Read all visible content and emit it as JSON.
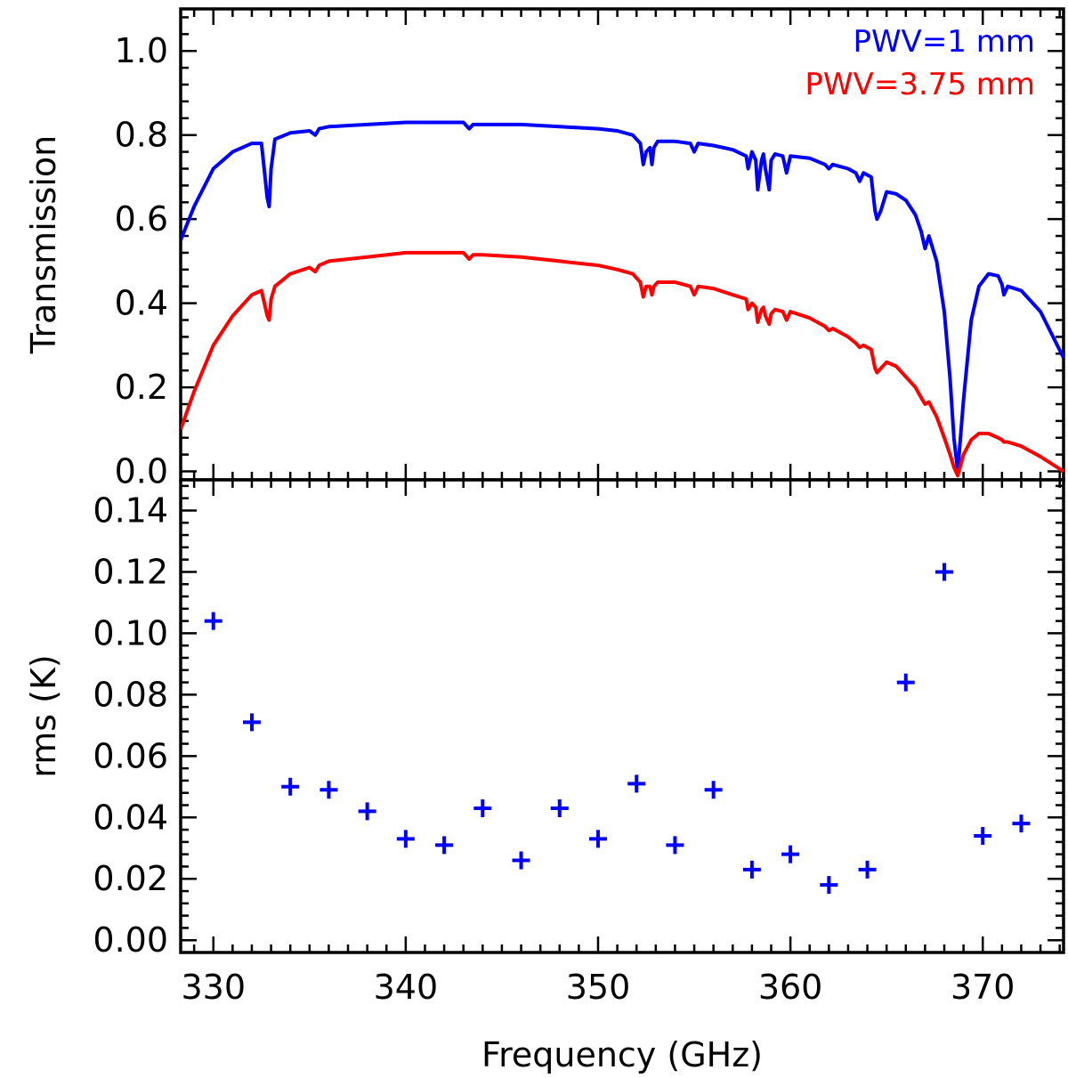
{
  "chart_data": [
    {
      "type": "line",
      "panel": "top",
      "xlabel": "",
      "ylabel": "Transmission",
      "xlim": [
        328.3,
        374.2
      ],
      "ylim": [
        -0.02,
        1.1
      ],
      "yticks": [
        0.0,
        0.2,
        0.4,
        0.6,
        0.8,
        1.0
      ],
      "ytick_labels": [
        "0.0",
        "0.2",
        "0.4",
        "0.6",
        "0.8",
        "1.0"
      ],
      "legend_position": "top-right",
      "series": [
        {
          "name": "PWV=1 mm",
          "color": "#0000ff",
          "x": [
            328.3,
            329,
            330,
            331,
            332,
            332.5,
            332.8,
            332.9,
            333.0,
            333.2,
            334,
            335,
            335.3,
            335.5,
            336,
            338,
            340,
            342,
            343,
            343.3,
            343.5,
            344,
            346,
            348,
            350,
            351,
            351.8,
            352.2,
            352.35,
            352.5,
            352.7,
            352.8,
            352.9,
            353.1,
            354,
            354.8,
            355.0,
            355.2,
            356,
            357,
            357.7,
            357.8,
            358,
            358.2,
            358.3,
            358.5,
            358.6,
            358.7,
            358.9,
            359.0,
            359.2,
            359.6,
            359.8,
            360,
            361,
            361.8,
            362.0,
            362.2,
            363,
            363.4,
            363.6,
            363.8,
            364.2,
            364.4,
            364.5,
            364.7,
            365,
            365.5,
            366,
            366.5,
            366.8,
            367.0,
            367.2,
            367.6,
            368,
            368.3,
            368.5,
            368.7,
            369.0,
            369.4,
            369.8,
            370.3,
            370.8,
            371.0,
            371.1,
            371.3,
            372,
            373,
            374.2
          ],
          "y": [
            0.55,
            0.63,
            0.72,
            0.76,
            0.78,
            0.78,
            0.65,
            0.63,
            0.72,
            0.79,
            0.805,
            0.81,
            0.8,
            0.815,
            0.82,
            0.825,
            0.83,
            0.83,
            0.83,
            0.815,
            0.825,
            0.825,
            0.825,
            0.82,
            0.815,
            0.81,
            0.8,
            0.78,
            0.73,
            0.76,
            0.77,
            0.73,
            0.77,
            0.785,
            0.785,
            0.78,
            0.76,
            0.78,
            0.775,
            0.765,
            0.75,
            0.72,
            0.76,
            0.74,
            0.67,
            0.74,
            0.755,
            0.72,
            0.67,
            0.74,
            0.755,
            0.75,
            0.71,
            0.75,
            0.745,
            0.73,
            0.72,
            0.73,
            0.72,
            0.71,
            0.69,
            0.71,
            0.7,
            0.62,
            0.6,
            0.62,
            0.665,
            0.66,
            0.645,
            0.61,
            0.57,
            0.53,
            0.56,
            0.5,
            0.38,
            0.22,
            0.08,
            0.0,
            0.17,
            0.36,
            0.44,
            0.47,
            0.465,
            0.445,
            0.42,
            0.44,
            0.43,
            0.38,
            0.27
          ]
        },
        {
          "name": "PWV=3.75 mm",
          "color": "#ff0000",
          "x": [
            328.3,
            329,
            330,
            331,
            332,
            332.5,
            332.8,
            332.9,
            333.0,
            333.2,
            334,
            335,
            335.3,
            335.5,
            336,
            338,
            340,
            342,
            343,
            343.3,
            343.5,
            344,
            346,
            348,
            350,
            351,
            351.8,
            352.2,
            352.35,
            352.5,
            352.7,
            352.8,
            352.9,
            353.1,
            354,
            354.8,
            355.0,
            355.2,
            356,
            357,
            357.7,
            357.8,
            358,
            358.2,
            358.3,
            358.5,
            358.6,
            358.7,
            358.9,
            359.0,
            359.2,
            359.6,
            359.8,
            360,
            361,
            361.8,
            362.0,
            362.2,
            363,
            363.4,
            363.6,
            363.8,
            364.2,
            364.4,
            364.5,
            364.7,
            365,
            365.5,
            366,
            366.5,
            366.8,
            367.0,
            367.2,
            367.6,
            368,
            368.3,
            368.5,
            368.7,
            369.0,
            369.4,
            369.8,
            370.3,
            370.8,
            371.0,
            371.1,
            371.3,
            372,
            373,
            374.2
          ],
          "y": [
            0.1,
            0.19,
            0.3,
            0.37,
            0.42,
            0.43,
            0.37,
            0.36,
            0.41,
            0.44,
            0.47,
            0.485,
            0.475,
            0.49,
            0.5,
            0.51,
            0.52,
            0.52,
            0.52,
            0.505,
            0.515,
            0.515,
            0.51,
            0.5,
            0.49,
            0.48,
            0.47,
            0.45,
            0.415,
            0.44,
            0.44,
            0.42,
            0.44,
            0.45,
            0.45,
            0.44,
            0.42,
            0.44,
            0.435,
            0.42,
            0.41,
            0.385,
            0.4,
            0.39,
            0.355,
            0.385,
            0.39,
            0.37,
            0.35,
            0.375,
            0.385,
            0.38,
            0.36,
            0.38,
            0.365,
            0.345,
            0.335,
            0.34,
            0.32,
            0.305,
            0.295,
            0.3,
            0.29,
            0.245,
            0.235,
            0.245,
            0.26,
            0.25,
            0.225,
            0.2,
            0.175,
            0.16,
            0.165,
            0.13,
            0.08,
            0.04,
            0.01,
            -0.01,
            0.04,
            0.075,
            0.09,
            0.09,
            0.08,
            0.075,
            0.07,
            0.07,
            0.06,
            0.035,
            0.0
          ]
        }
      ]
    },
    {
      "type": "scatter",
      "panel": "bottom",
      "xlabel": "Frequency (GHz)",
      "ylabel": "rms (K)",
      "xlim": [
        328.3,
        374.2
      ],
      "ylim": [
        -0.004,
        0.15
      ],
      "xticks": [
        330,
        340,
        350,
        360,
        370
      ],
      "xtick_labels": [
        "330",
        "340",
        "350",
        "360",
        "370"
      ],
      "yticks": [
        0.0,
        0.02,
        0.04,
        0.06,
        0.08,
        0.1,
        0.12,
        0.14
      ],
      "ytick_labels": [
        "0.00",
        "0.02",
        "0.04",
        "0.06",
        "0.08",
        "0.10",
        "0.12",
        "0.14"
      ],
      "marker": "plus",
      "color": "#0000ff",
      "x": [
        330,
        332,
        334,
        336,
        338,
        340,
        342,
        344,
        346,
        348,
        350,
        352,
        354,
        356,
        358,
        360,
        362,
        364,
        366,
        368,
        370,
        372
      ],
      "y": [
        0.104,
        0.071,
        0.05,
        0.049,
        0.042,
        0.033,
        0.031,
        0.043,
        0.026,
        0.043,
        0.033,
        0.051,
        0.031,
        0.049,
        0.023,
        0.028,
        0.018,
        0.023,
        0.084,
        0.12,
        0.034,
        0.038
      ]
    }
  ]
}
